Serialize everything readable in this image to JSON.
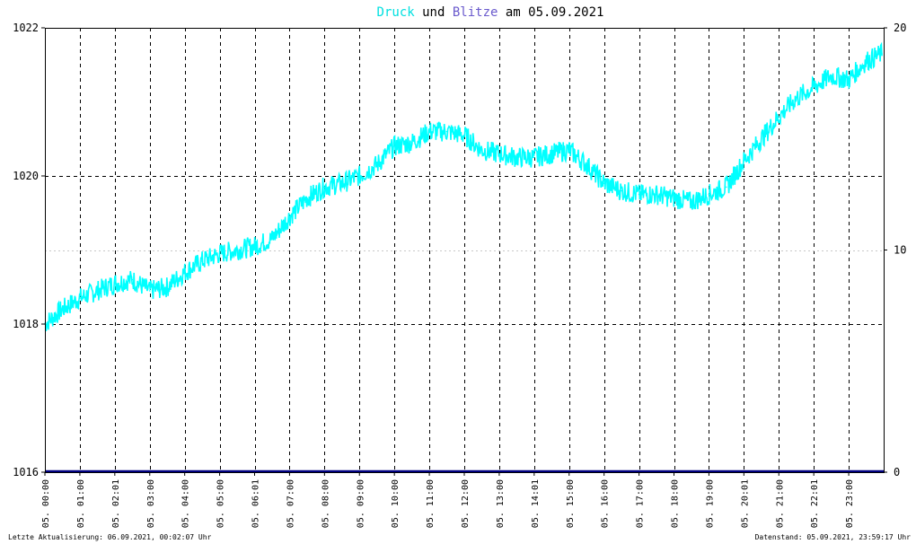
{
  "title": {
    "part1": "Druck",
    "part2": " und ",
    "part3": "Blitze",
    "part4": " am 05.09.2021"
  },
  "footer": {
    "left": "Letzte Aktualisierung: 06.09.2021, 00:02:07 Uhr",
    "right": "Datenstand: 05.09.2021, 23:59:17 Uhr"
  },
  "colors": {
    "background": "#ffffff",
    "frame": "#000000",
    "druck": "#00ffff",
    "blitze": "#000080",
    "title_druck": "#00e0e0",
    "title_blitze": "#6a5acd",
    "grid_major": "#000000",
    "grid_minor": "#c8c8c8"
  },
  "chart_data": {
    "type": "line",
    "title": "Druck und Blitze am 05.09.2021",
    "x_ticks": [
      "05. 00:00",
      "05. 01:00",
      "05. 02:01",
      "05. 03:00",
      "05. 04:00",
      "05. 05:00",
      "05. 06:01",
      "05. 07:00",
      "05. 08:00",
      "05. 09:00",
      "05. 10:00",
      "05. 11:00",
      "05. 12:00",
      "05. 13:00",
      "05. 14:01",
      "05. 15:00",
      "05. 16:00",
      "05. 17:00",
      "05. 18:00",
      "05. 19:00",
      "05. 20:01",
      "05. 21:00",
      "05. 22:01",
      "05. 23:00"
    ],
    "x_range_hours": [
      0,
      24
    ],
    "y_left": {
      "ticks": [
        1016,
        1018,
        1020,
        1022
      ],
      "range": [
        1016,
        1022
      ]
    },
    "y_right": {
      "ticks": [
        0,
        10,
        20
      ],
      "range": [
        0,
        20
      ]
    },
    "grid": true,
    "series": [
      {
        "name": "Druck",
        "axis": "left",
        "x": [
          0,
          0.5,
          1,
          1.5,
          2,
          2.5,
          3,
          3.5,
          4,
          4.5,
          5,
          5.5,
          6,
          6.5,
          7,
          7.5,
          8,
          8.5,
          9,
          9.5,
          10,
          10.5,
          11,
          11.5,
          12,
          12.5,
          13,
          13.5,
          14,
          14.5,
          15,
          15.5,
          16,
          16.5,
          17,
          17.5,
          18,
          18.5,
          19,
          19.5,
          20,
          20.5,
          21,
          21.5,
          22,
          22.5,
          23,
          23.5,
          23.95
        ],
        "y": [
          1018.0,
          1018.2,
          1018.35,
          1018.45,
          1018.55,
          1018.6,
          1018.45,
          1018.5,
          1018.7,
          1018.85,
          1018.95,
          1019.0,
          1019.05,
          1019.15,
          1019.45,
          1019.7,
          1019.85,
          1019.9,
          1020.0,
          1020.15,
          1020.4,
          1020.45,
          1020.6,
          1020.6,
          1020.55,
          1020.35,
          1020.3,
          1020.25,
          1020.25,
          1020.3,
          1020.35,
          1020.15,
          1019.9,
          1019.8,
          1019.75,
          1019.75,
          1019.7,
          1019.65,
          1019.75,
          1019.85,
          1020.2,
          1020.5,
          1020.8,
          1021.05,
          1021.2,
          1021.35,
          1021.3,
          1021.55,
          1021.65
        ]
      },
      {
        "name": "Blitze",
        "axis": "right",
        "x": [
          0,
          24
        ],
        "y": [
          0,
          0
        ]
      }
    ]
  }
}
